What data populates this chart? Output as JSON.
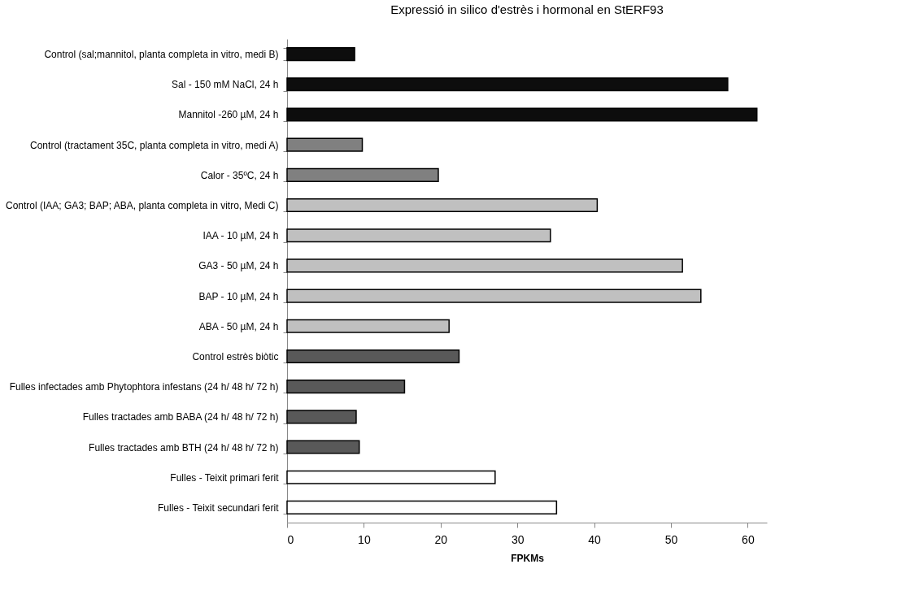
{
  "chart_data": {
    "type": "bar",
    "orientation": "horizontal",
    "title": "Expressió in silico d'estrès i hormonal en StERF93",
    "xlabel": "FPKMs",
    "categories": [
      "Control (sal;mannitol, planta completa in vitro, medi B)",
      "Sal - 150 mM NaCl, 24 h",
      "Mannitol -260 µM, 24 h",
      "Control (tractament 35C, planta completa in vitro, medi A)",
      "Calor - 35ºC, 24 h",
      "Control (IAA; GA3; BAP; ABA, planta completa in vitro, Medi C)",
      "IAA - 10 µM, 24 h",
      "GA3 - 50 µM, 24 h",
      "BAP - 10 µM, 24 h",
      "ABA - 50 µM, 24 h",
      "Control estrès biòtic",
      "Fulles infectades amb Phytophtora infestans (24 h/ 48 h/ 72 h)",
      "Fulles tractades amb BABA (24 h/ 48 h/ 72 h)",
      "Fulles tractades amb BTH (24 h/ 48 h/ 72 h)",
      "Fulles - Teixit primari ferit",
      "Fulles - Teixit secundari ferit"
    ],
    "values": [
      8.8,
      57.4,
      61.2,
      9.8,
      19.7,
      40.4,
      34.3,
      51.5,
      53.9,
      21.1,
      22.4,
      15.3,
      9.0,
      9.4,
      27.1,
      35.1
    ],
    "colors": [
      "#0d0d0d",
      "#0d0d0d",
      "#0d0d0d",
      "#808080",
      "#808080",
      "#c0c0c0",
      "#c0c0c0",
      "#c0c0c0",
      "#c0c0c0",
      "#c0c0c0",
      "#595959",
      "#595959",
      "#595959",
      "#595959",
      "#ffffff",
      "#ffffff"
    ],
    "xlim": [
      0,
      62.5
    ],
    "xticks": [
      0,
      10,
      20,
      30,
      40,
      50,
      60
    ],
    "grid": false
  }
}
